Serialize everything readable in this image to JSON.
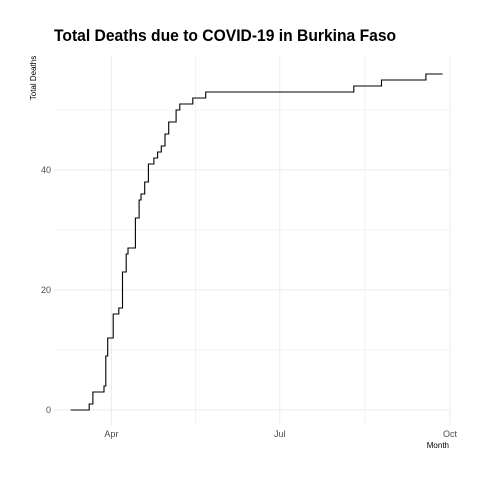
{
  "chart_data": {
    "type": "line",
    "title": "Total Deaths due to COVID-19 in Burkina Faso",
    "xlabel": "Month",
    "ylabel": "Total Deaths",
    "x_ticks": [
      {
        "label": "Apr",
        "date": "2020-04-01"
      },
      {
        "label": "Jul",
        "date": "2020-07-01"
      },
      {
        "label": "Oct",
        "date": "2020-10-01"
      }
    ],
    "y_ticks": [
      0,
      20,
      40
    ],
    "ylim": [
      -2.5,
      59
    ],
    "xlim": [
      "2020-03-01",
      "2020-10-01"
    ],
    "grid": true,
    "series": [
      {
        "values": [
          {
            "x": "2020-03-10",
            "y": 0
          },
          {
            "x": "2020-03-18",
            "y": 0
          },
          {
            "x": "2020-03-20",
            "y": 1
          },
          {
            "x": "2020-03-22",
            "y": 3
          },
          {
            "x": "2020-03-28",
            "y": 4
          },
          {
            "x": "2020-03-29",
            "y": 9
          },
          {
            "x": "2020-03-30",
            "y": 12
          },
          {
            "x": "2020-04-02",
            "y": 16
          },
          {
            "x": "2020-04-05",
            "y": 17
          },
          {
            "x": "2020-04-07",
            "y": 23
          },
          {
            "x": "2020-04-09",
            "y": 26
          },
          {
            "x": "2020-04-10",
            "y": 27
          },
          {
            "x": "2020-04-14",
            "y": 32
          },
          {
            "x": "2020-04-16",
            "y": 35
          },
          {
            "x": "2020-04-17",
            "y": 36
          },
          {
            "x": "2020-04-19",
            "y": 38
          },
          {
            "x": "2020-04-21",
            "y": 41
          },
          {
            "x": "2020-04-24",
            "y": 42
          },
          {
            "x": "2020-04-26",
            "y": 43
          },
          {
            "x": "2020-04-28",
            "y": 44
          },
          {
            "x": "2020-04-30",
            "y": 46
          },
          {
            "x": "2020-05-02",
            "y": 48
          },
          {
            "x": "2020-05-06",
            "y": 50
          },
          {
            "x": "2020-05-08",
            "y": 51
          },
          {
            "x": "2020-05-15",
            "y": 52
          },
          {
            "x": "2020-05-22",
            "y": 53
          },
          {
            "x": "2020-08-10",
            "y": 54
          },
          {
            "x": "2020-08-25",
            "y": 55
          },
          {
            "x": "2020-09-18",
            "y": 56
          },
          {
            "x": "2020-09-27",
            "y": 56
          }
        ]
      }
    ],
    "colors": {
      "line": "#000000",
      "grid": "#ebebeb",
      "background": "#ffffff"
    }
  }
}
